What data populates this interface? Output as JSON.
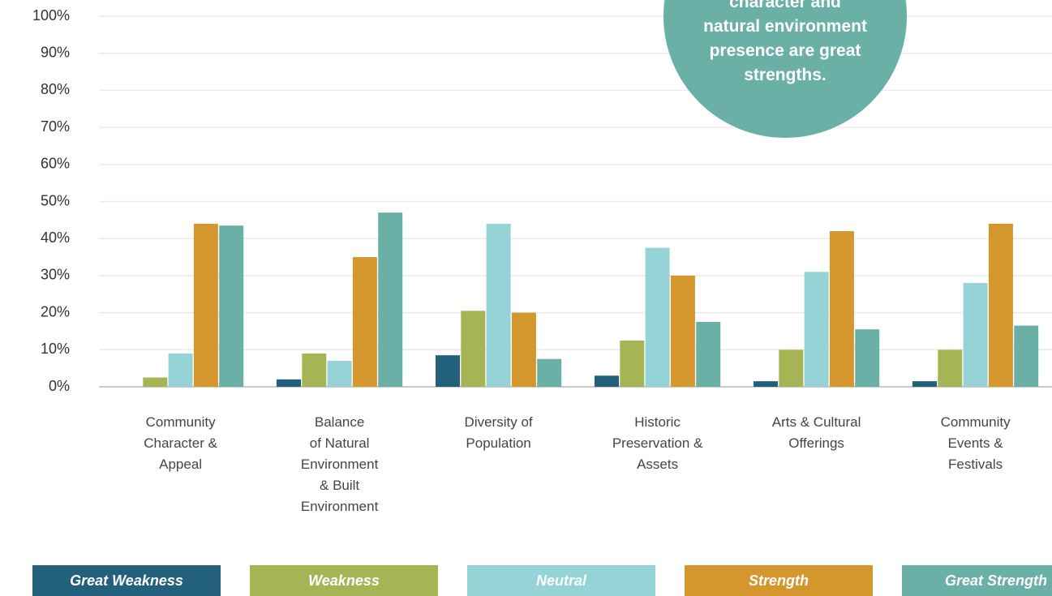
{
  "chart_data": {
    "type": "bar",
    "categories": [
      "Community\nCharacter &\nAppeal",
      "Balance\nof Natural\nEnvironment\n& Built\nEnvironment",
      "Diversity of\nPopulation",
      "Historic\nPreservation &\nAssets",
      "Arts & Cultural\nOfferings",
      "Community\nEvents &\nFestivals"
    ],
    "series": [
      {
        "name": "Great Weakness",
        "color": "#22607c",
        "values": [
          0,
          2,
          8.5,
          3,
          1.5,
          1.5
        ]
      },
      {
        "name": "Weakness",
        "color": "#a5b556",
        "values": [
          2.5,
          9,
          20.5,
          12.5,
          10,
          10
        ]
      },
      {
        "name": "Neutral",
        "color": "#95d3d6",
        "values": [
          9,
          7,
          44,
          37.5,
          31,
          28
        ]
      },
      {
        "name": "Strength",
        "color": "#d4972e",
        "values": [
          44,
          35,
          20,
          30,
          42,
          44
        ]
      },
      {
        "name": "Great Strength",
        "color": "#6ab0a7",
        "values": [
          43.5,
          47,
          7.5,
          17.5,
          15.5,
          16.5
        ]
      }
    ],
    "ylim": [
      0,
      100
    ],
    "yticks": [
      {
        "value": 0,
        "label": "0%"
      },
      {
        "value": 10,
        "label": "10%"
      },
      {
        "value": 20,
        "label": "20%"
      },
      {
        "value": 30,
        "label": "30%"
      },
      {
        "value": 40,
        "label": "40%"
      },
      {
        "value": 50,
        "label": "50%"
      },
      {
        "value": 60,
        "label": "60%"
      },
      {
        "value": 70,
        "label": "70%"
      },
      {
        "value": 80,
        "label": "80%"
      },
      {
        "value": 90,
        "label": "90%"
      },
      {
        "value": 100,
        "label": "100%"
      }
    ],
    "grid": true,
    "annotation_lines": [
      "character and",
      "natural environment",
      "presence are great",
      "strengths."
    ],
    "annotation_color": "#6ab0a7"
  }
}
